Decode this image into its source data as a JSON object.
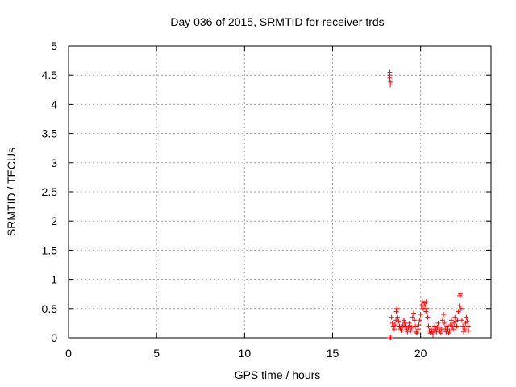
{
  "chart_data": {
    "type": "scatter",
    "title": "Day 036 of 2015, SRMTID for receiver trds",
    "xlabel": "GPS time / hours",
    "ylabel": "SRMTID / TECUs",
    "xlim": [
      0,
      24
    ],
    "ylim": [
      0,
      5
    ],
    "x_ticks": [
      0,
      5,
      10,
      15,
      20
    ],
    "x_tick_labels": [
      "0",
      "5",
      "10",
      "15",
      "20"
    ],
    "y_ticks": [
      0,
      0.5,
      1,
      1.5,
      2,
      2.5,
      3,
      3.5,
      4,
      4.5,
      5
    ],
    "y_tick_labels": [
      "0",
      "0.5",
      "1",
      "1.5",
      "2",
      "2.5",
      "3",
      "3.5",
      "4",
      "4.5",
      "5"
    ],
    "grid": true,
    "marker": "+",
    "marker_color": "#ff0000",
    "series": [
      {
        "name": "SRMTID",
        "points": [
          [
            18.25,
            4.55
          ],
          [
            18.25,
            4.5
          ],
          [
            18.25,
            4.45
          ],
          [
            18.28,
            4.38
          ],
          [
            18.28,
            4.33
          ],
          [
            18.22,
            0.0
          ],
          [
            18.3,
            0.0
          ],
          [
            18.35,
            0.35
          ],
          [
            18.4,
            0.25
          ],
          [
            18.45,
            0.2
          ],
          [
            18.5,
            0.15
          ],
          [
            18.55,
            0.22
          ],
          [
            18.6,
            0.3
          ],
          [
            18.62,
            0.45
          ],
          [
            18.65,
            0.5
          ],
          [
            18.7,
            0.35
          ],
          [
            18.75,
            0.28
          ],
          [
            18.8,
            0.2
          ],
          [
            18.85,
            0.15
          ],
          [
            18.9,
            0.12
          ],
          [
            18.95,
            0.18
          ],
          [
            19.0,
            0.22
          ],
          [
            19.05,
            0.3
          ],
          [
            19.1,
            0.25
          ],
          [
            19.15,
            0.2
          ],
          [
            19.2,
            0.15
          ],
          [
            19.25,
            0.1
          ],
          [
            19.3,
            0.18
          ],
          [
            19.35,
            0.25
          ],
          [
            19.4,
            0.2
          ],
          [
            19.45,
            0.12
          ],
          [
            19.5,
            0.18
          ],
          [
            19.55,
            0.35
          ],
          [
            19.6,
            0.42
          ],
          [
            19.65,
            0.3
          ],
          [
            19.7,
            0.2
          ],
          [
            19.75,
            0.1
          ],
          [
            19.8,
            0.08
          ],
          [
            19.85,
            0.15
          ],
          [
            19.9,
            0.22
          ],
          [
            19.95,
            0.3
          ],
          [
            20.0,
            0.4
          ],
          [
            20.05,
            0.55
          ],
          [
            20.1,
            0.62
          ],
          [
            20.15,
            0.5
          ],
          [
            20.2,
            0.6
          ],
          [
            20.25,
            0.55
          ],
          [
            20.3,
            0.45
          ],
          [
            20.32,
            0.62
          ],
          [
            20.35,
            0.5
          ],
          [
            20.4,
            0.35
          ],
          [
            20.45,
            0.2
          ],
          [
            20.5,
            0.12
          ],
          [
            20.55,
            0.08
          ],
          [
            20.6,
            0.15
          ],
          [
            20.65,
            0.1
          ],
          [
            20.7,
            0.05
          ],
          [
            20.75,
            0.12
          ],
          [
            20.8,
            0.2
          ],
          [
            20.85,
            0.15
          ],
          [
            20.9,
            0.1
          ],
          [
            20.95,
            0.18
          ],
          [
            21.0,
            0.25
          ],
          [
            21.05,
            0.18
          ],
          [
            21.1,
            0.12
          ],
          [
            21.15,
            0.08
          ],
          [
            21.2,
            0.15
          ],
          [
            21.25,
            0.3
          ],
          [
            21.3,
            0.4
          ],
          [
            21.35,
            0.25
          ],
          [
            21.4,
            0.15
          ],
          [
            21.45,
            0.1
          ],
          [
            21.5,
            0.2
          ],
          [
            21.55,
            0.15
          ],
          [
            21.6,
            0.08
          ],
          [
            21.65,
            0.12
          ],
          [
            21.7,
            0.22
          ],
          [
            21.75,
            0.3
          ],
          [
            21.8,
            0.2
          ],
          [
            21.85,
            0.15
          ],
          [
            21.9,
            0.25
          ],
          [
            21.95,
            0.35
          ],
          [
            22.0,
            0.28
          ],
          [
            22.05,
            0.2
          ],
          [
            22.1,
            0.3
          ],
          [
            22.15,
            0.45
          ],
          [
            22.2,
            0.55
          ],
          [
            22.22,
            0.72
          ],
          [
            22.25,
            0.75
          ],
          [
            22.3,
            0.5
          ],
          [
            22.35,
            0.3
          ],
          [
            22.4,
            0.2
          ],
          [
            22.45,
            0.1
          ],
          [
            22.5,
            0.15
          ],
          [
            22.55,
            0.25
          ],
          [
            22.6,
            0.35
          ],
          [
            22.65,
            0.28
          ],
          [
            22.7,
            0.2
          ],
          [
            22.72,
            0.12
          ]
        ]
      }
    ]
  }
}
